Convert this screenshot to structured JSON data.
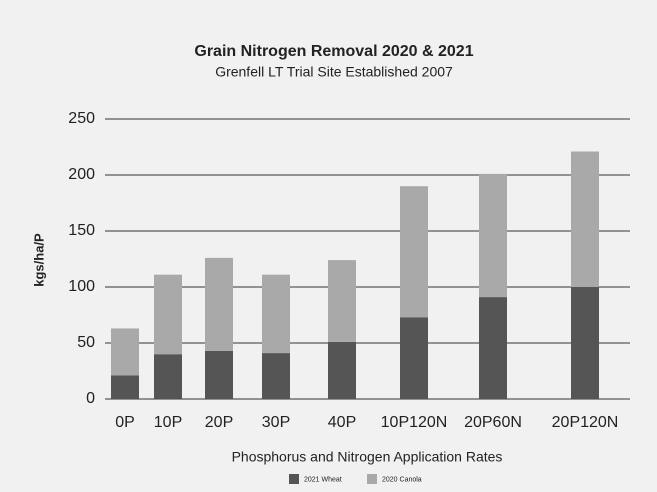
{
  "chart_data": {
    "type": "stacked-bar",
    "title": "Grain Nitrogen Removal 2020 & 2021",
    "subtitle": "Grenfell LT Trial Site Established 2007",
    "xlabel": "Phosphorus and Nitrogen Application Rates",
    "ylabel": "kgs/ha/P",
    "categories": [
      "0P",
      "10P",
      "20P",
      "30P",
      "40P",
      "10P120N",
      "20P60N",
      "20P120N"
    ],
    "series": [
      {
        "name": "2021 Wheat",
        "color": "#555555",
        "values": [
          21,
          40,
          43,
          41,
          51,
          73,
          91,
          100
        ]
      },
      {
        "name": "2020 Canola",
        "color": "#a9a9a9",
        "values": [
          42,
          71,
          83,
          70,
          73,
          117,
          110,
          121
        ]
      }
    ],
    "ylim": [
      0,
      250
    ],
    "yticks": [
      0,
      50,
      100,
      150,
      200,
      250
    ],
    "grid": true
  }
}
